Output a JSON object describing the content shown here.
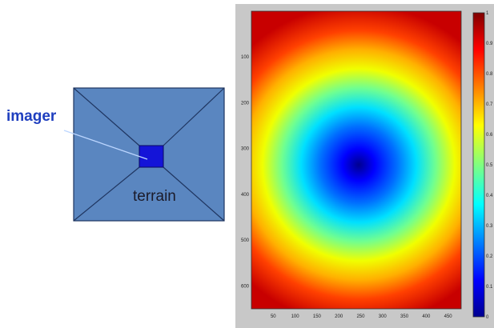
{
  "diagram": {
    "imager_label": "imager",
    "terrain_label": "terrain",
    "colors": {
      "label_blue": "#1f3fbf",
      "panel_fill": "#5a86c0",
      "panel_stroke": "#1f3560",
      "imager_box": "#1414d8",
      "sight_line": "#bcd6ff"
    }
  },
  "chart_data": {
    "type": "heatmap",
    "colormap": "jet",
    "description_value": "normalized distance from center; minimum (blue) near x≈250, y≈320, maximum (red) at corners",
    "center": {
      "x": 250,
      "y": 320
    },
    "xlim": [
      0,
      480
    ],
    "ylim": [
      650,
      0
    ],
    "x_ticks": [
      "50",
      "100",
      "150",
      "200",
      "250",
      "300",
      "350",
      "400",
      "450"
    ],
    "y_ticks": [
      "100",
      "200",
      "300",
      "400",
      "500",
      "600"
    ],
    "colorbar": {
      "range": [
        0,
        1
      ],
      "ticks": [
        "1",
        "0.9",
        "0.8",
        "0.7",
        "0.6",
        "0.5",
        "0.4",
        "0.3",
        "0.2",
        "0.1",
        "0"
      ]
    }
  }
}
